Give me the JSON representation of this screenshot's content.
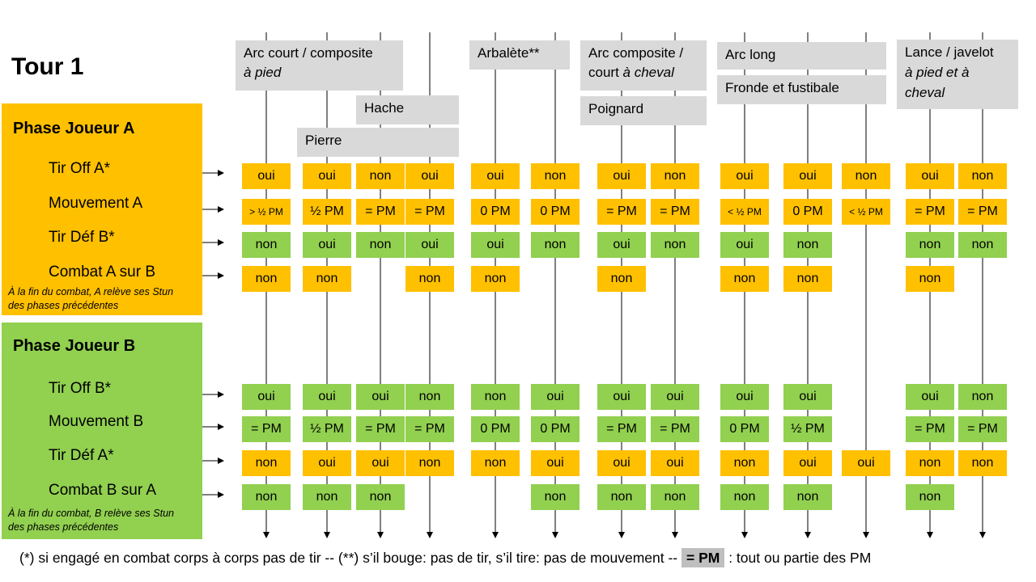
{
  "title": "Tour 1",
  "phase_a": {
    "title": "Phase Joueur A",
    "steps": [
      "Tir Off A*",
      "Mouvement A",
      "Tir Déf B*",
      "Combat A sur B"
    ],
    "note_line1": "À la fin du combat, A relève ses Stun",
    "note_line2": "des phases précédentes"
  },
  "phase_b": {
    "title": "Phase Joueur B",
    "steps": [
      "Tir Off B*",
      "Mouvement B",
      "Tir Déf A*",
      "Combat B sur A"
    ],
    "note_line1": "À la fin du combat, B relève ses Stun",
    "note_line2": "des phases précédentes"
  },
  "weapons": {
    "arc_court_l1": "Arc court / composite",
    "arc_court_l2": "à pied",
    "hache": "Hache",
    "pierre": "Pierre",
    "arbalete": "Arbalète**",
    "arc_comp_l1": "Arc composite /",
    "arc_comp_l2a": "court ",
    "arc_comp_l2b": "à cheval",
    "poignard": "Poignard",
    "arc_long": "Arc long",
    "fronde": "Fronde et fustibale",
    "lance_l1": "Lance / javelot",
    "lance_l2": "à pied et à",
    "lance_l3": "cheval"
  },
  "cells": {
    "a_tir_off": [
      "oui",
      "oui",
      "non",
      "oui",
      "oui",
      "non",
      "oui",
      "non",
      "oui",
      "oui",
      "non",
      "oui",
      "non"
    ],
    "a_mouv": [
      "> ½ PM",
      "½ PM",
      "= PM",
      "= PM",
      "0 PM",
      "0 PM",
      "= PM",
      "= PM",
      "< ½ PM",
      "0 PM",
      "< ½ PM",
      "= PM",
      "= PM"
    ],
    "a_tir_def": [
      "non",
      "oui",
      "non",
      "oui",
      "oui",
      "non",
      "oui",
      "non",
      "oui",
      "non",
      "",
      "non",
      "non"
    ],
    "a_combat": [
      "non",
      "non",
      "",
      "non",
      "non",
      "",
      "non",
      "",
      "non",
      "non",
      "",
      "non",
      ""
    ],
    "b_tir_off": [
      "oui",
      "oui",
      "oui",
      "non",
      "non",
      "oui",
      "oui",
      "oui",
      "oui",
      "oui",
      "",
      "oui",
      "non"
    ],
    "b_mouv": [
      "= PM",
      "½ PM",
      "= PM",
      "= PM",
      "0 PM",
      "0 PM",
      "= PM",
      "= PM",
      "0 PM",
      "½ PM",
      "",
      "= PM",
      "= PM"
    ],
    "b_tir_def": [
      "non",
      "oui",
      "oui",
      "non",
      "non",
      "oui",
      "oui",
      "oui",
      "non",
      "oui",
      "oui",
      "non",
      "non"
    ],
    "b_combat": [
      "non",
      "non",
      "non",
      "",
      "",
      "non",
      "non",
      "non",
      "non",
      "non",
      "",
      "non",
      ""
    ]
  },
  "footer": {
    "part1": "(*) si engagé en combat corps à corps pas de tir -- (**) s’il bouge: pas de tir, s’il tire: pas de mouvement  -- ",
    "pm": "= PM",
    "part2": " : tout ou partie des PM"
  },
  "colors": {
    "attacker": "#FFC000",
    "defender": "#92D050",
    "weapon_box": "#D9D9D9"
  }
}
